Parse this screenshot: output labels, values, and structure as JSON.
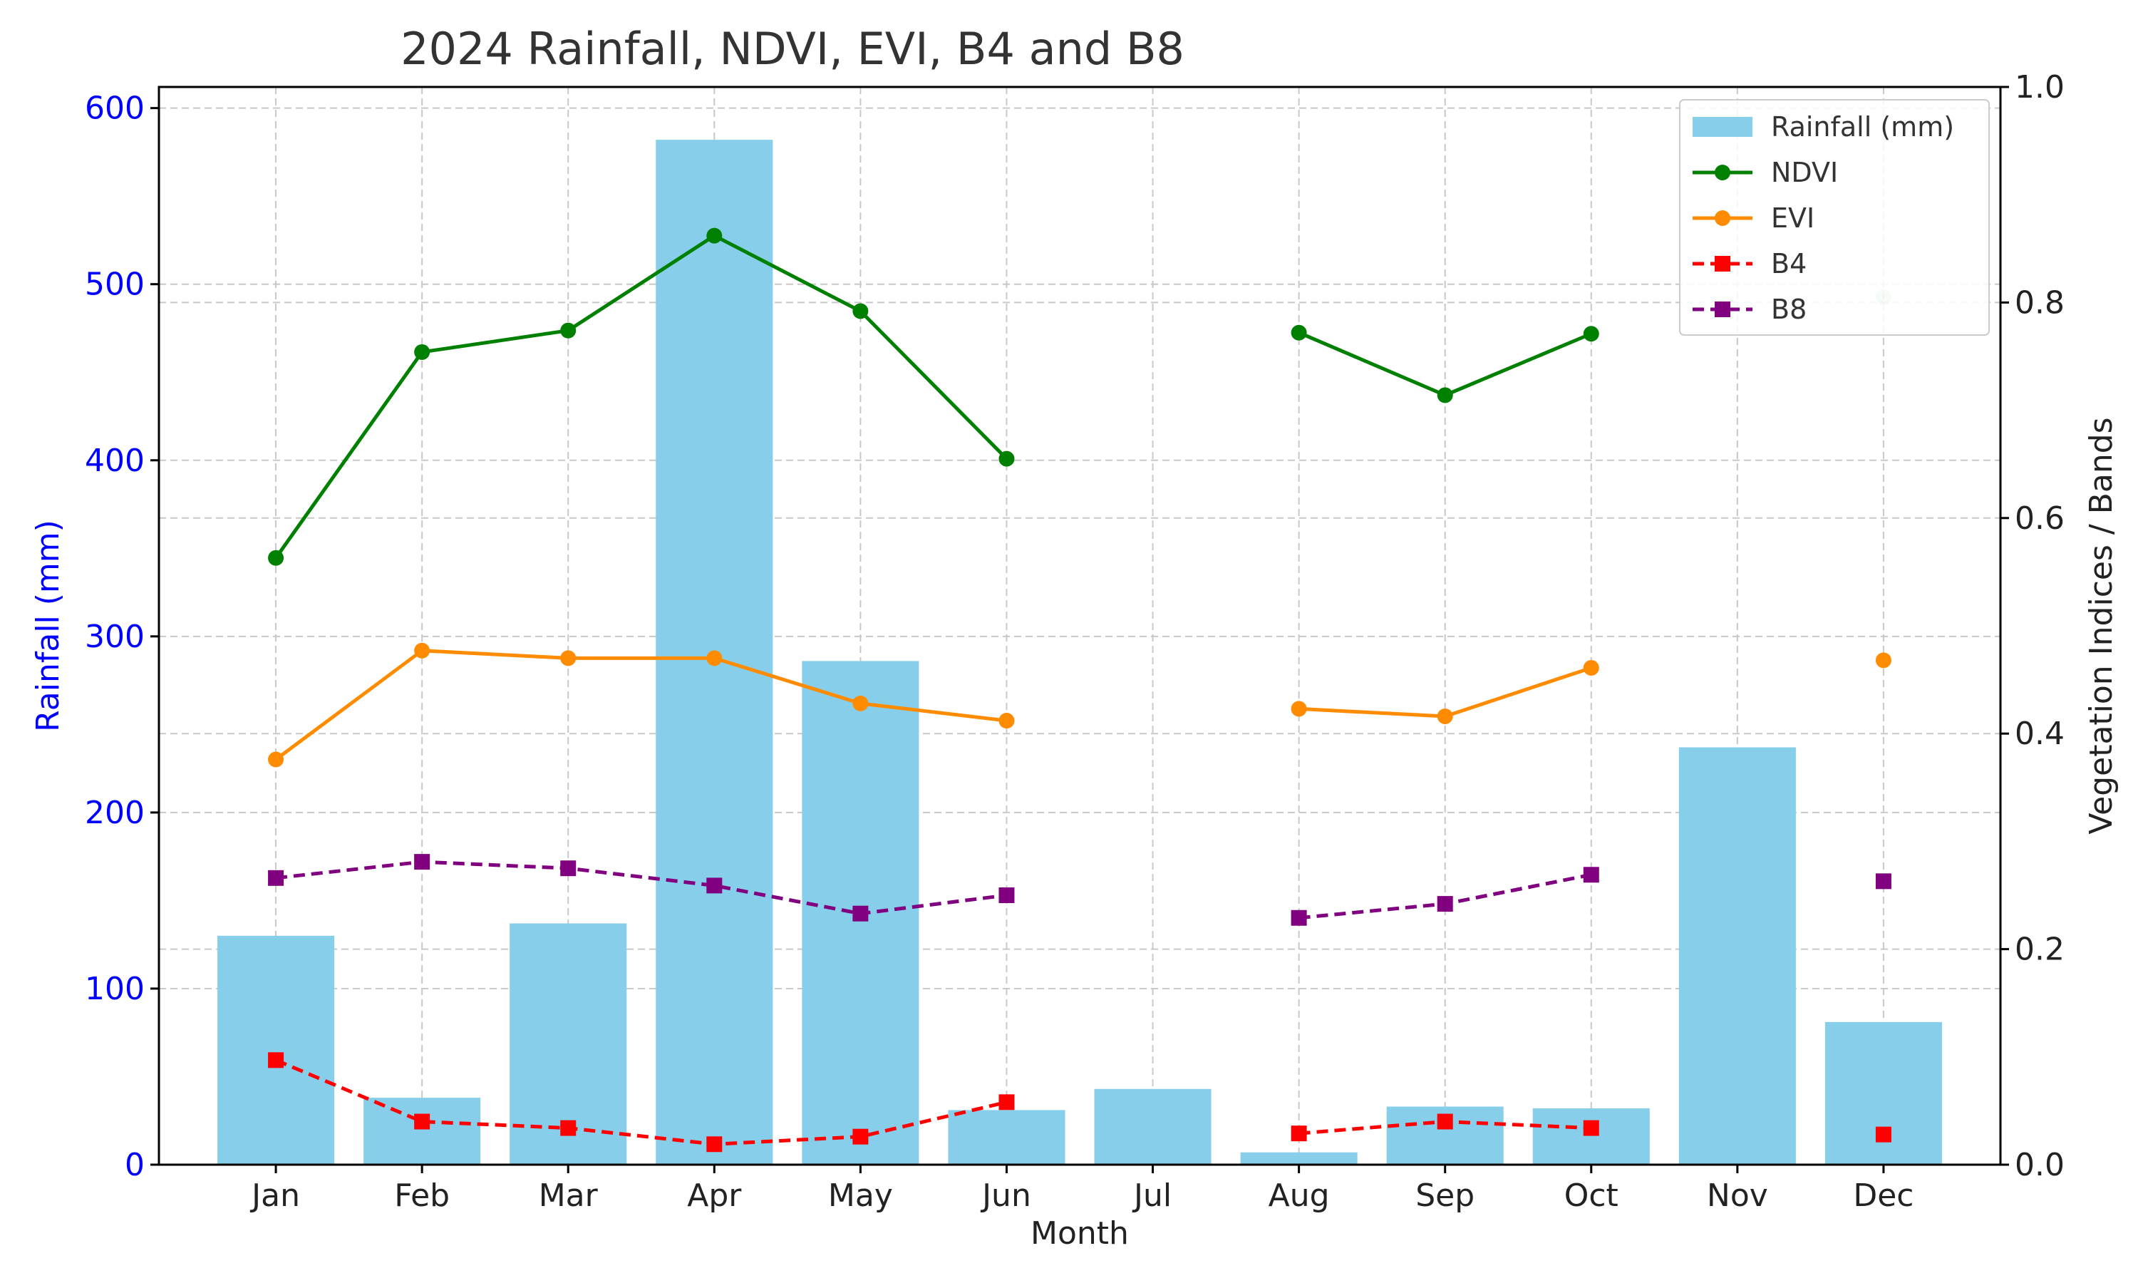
{
  "chart_data": {
    "type": "bar",
    "title": "2024 Rainfall, NDVI, EVI, B4 and B8",
    "xlabel": "Month",
    "ylabel_left": "Rainfall (mm)",
    "ylabel_right": "Vegetation Indices / Bands",
    "categories": [
      "Jan",
      "Feb",
      "Mar",
      "Apr",
      "May",
      "Jun",
      "Jul",
      "Aug",
      "Sep",
      "Oct",
      "Nov",
      "Dec"
    ],
    "ylim_left": [
      0,
      612
    ],
    "ylim_right": [
      0,
      1.0
    ],
    "yticks_left": [
      0,
      100,
      200,
      300,
      400,
      500,
      600
    ],
    "yticks_right": [
      0.0,
      0.2,
      0.4,
      0.6,
      0.8,
      1.0
    ],
    "yticks_right_labels": [
      "0.0",
      "0.2",
      "0.4",
      "0.6",
      "0.8",
      "1.0"
    ],
    "grid": true,
    "legend_position": "top-right",
    "colors": {
      "rainfall": "#87ceeb",
      "ndvi": "#008000",
      "evi": "#ff8c00",
      "b4": "#ff0000",
      "b8": "#800080",
      "left_axis": "#0000ff"
    },
    "series": [
      {
        "name": "Rainfall (mm)",
        "type": "bar",
        "axis": "left",
        "color": "#87ceeb",
        "values": [
          130,
          38,
          137,
          582,
          286,
          31,
          43,
          7,
          33,
          32,
          237,
          81
        ]
      },
      {
        "name": "NDVI",
        "type": "line",
        "marker": "circle",
        "axis": "right",
        "color": "#008000",
        "dashed": false,
        "values": [
          0.563,
          0.754,
          0.774,
          0.862,
          0.792,
          0.655,
          null,
          0.772,
          0.714,
          0.771,
          null,
          0.805
        ]
      },
      {
        "name": "EVI",
        "type": "line",
        "marker": "circle",
        "axis": "right",
        "color": "#ff8c00",
        "dashed": false,
        "values": [
          0.376,
          0.477,
          0.47,
          0.47,
          0.428,
          0.412,
          null,
          0.423,
          0.416,
          0.461,
          null,
          0.468
        ]
      },
      {
        "name": "B4",
        "type": "line",
        "marker": "square",
        "axis": "right",
        "color": "#ff0000",
        "dashed": true,
        "values": [
          0.097,
          0.04,
          0.034,
          0.019,
          0.026,
          0.058,
          null,
          0.029,
          0.04,
          0.034,
          null,
          0.028
        ]
      },
      {
        "name": "B8",
        "type": "line",
        "marker": "square",
        "axis": "right",
        "color": "#800080",
        "dashed": true,
        "values": [
          0.266,
          0.281,
          0.275,
          0.259,
          0.233,
          0.25,
          null,
          0.229,
          0.242,
          0.269,
          null,
          0.263
        ]
      }
    ]
  }
}
